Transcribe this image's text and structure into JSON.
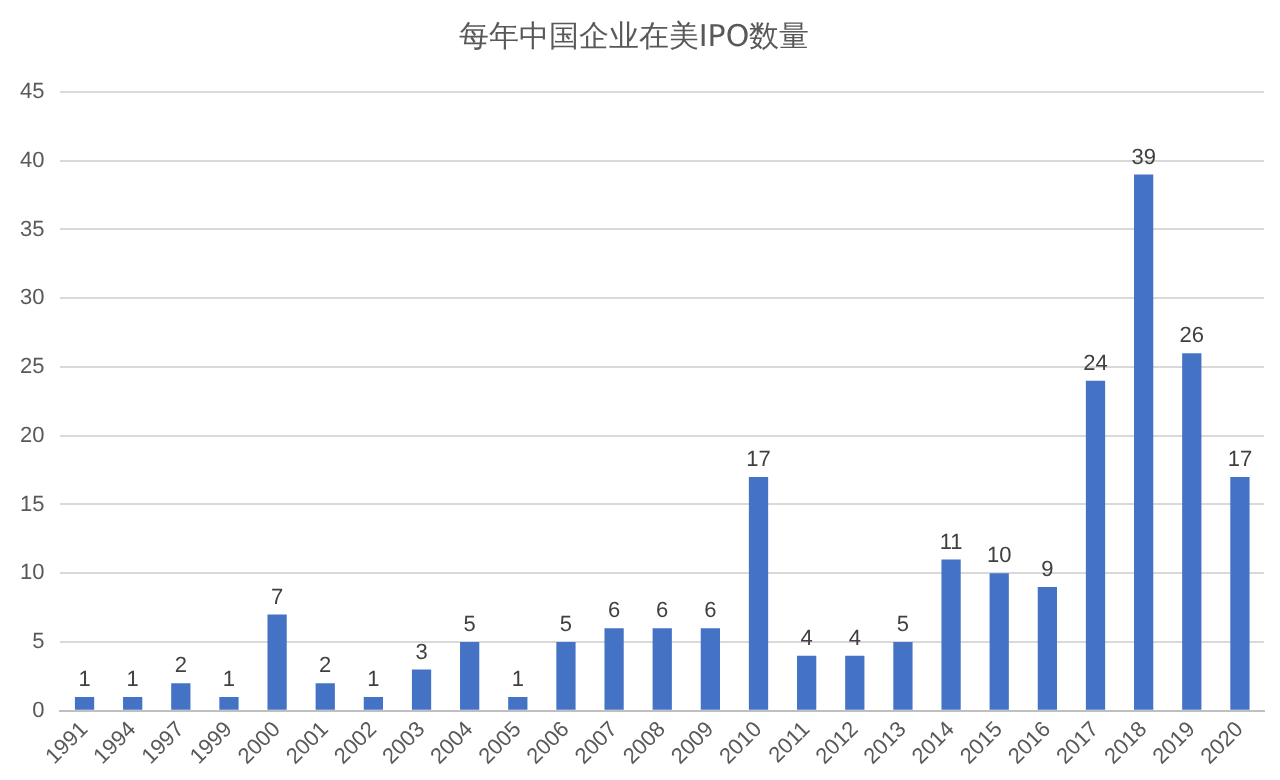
{
  "chart_data": {
    "type": "bar",
    "title": "每年中国企业在美IPO数量",
    "categories": [
      "1991",
      "1994",
      "1997",
      "1999",
      "2000",
      "2001",
      "2002",
      "2003",
      "2004",
      "2005",
      "2006",
      "2007",
      "2008",
      "2009",
      "2010",
      "2011",
      "2012",
      "2013",
      "2014",
      "2015",
      "2016",
      "2017",
      "2018",
      "2019",
      "2020"
    ],
    "values": [
      1,
      1,
      2,
      1,
      7,
      2,
      1,
      3,
      5,
      1,
      5,
      6,
      6,
      6,
      17,
      4,
      4,
      5,
      11,
      10,
      9,
      24,
      39,
      26,
      17
    ],
    "color": "#4472c4",
    "ylim": [
      0,
      45
    ],
    "yticks": [
      0,
      5,
      10,
      15,
      20,
      25,
      30,
      35,
      40,
      45
    ],
    "grid": "y",
    "data_labels": true,
    "legend": false
  }
}
